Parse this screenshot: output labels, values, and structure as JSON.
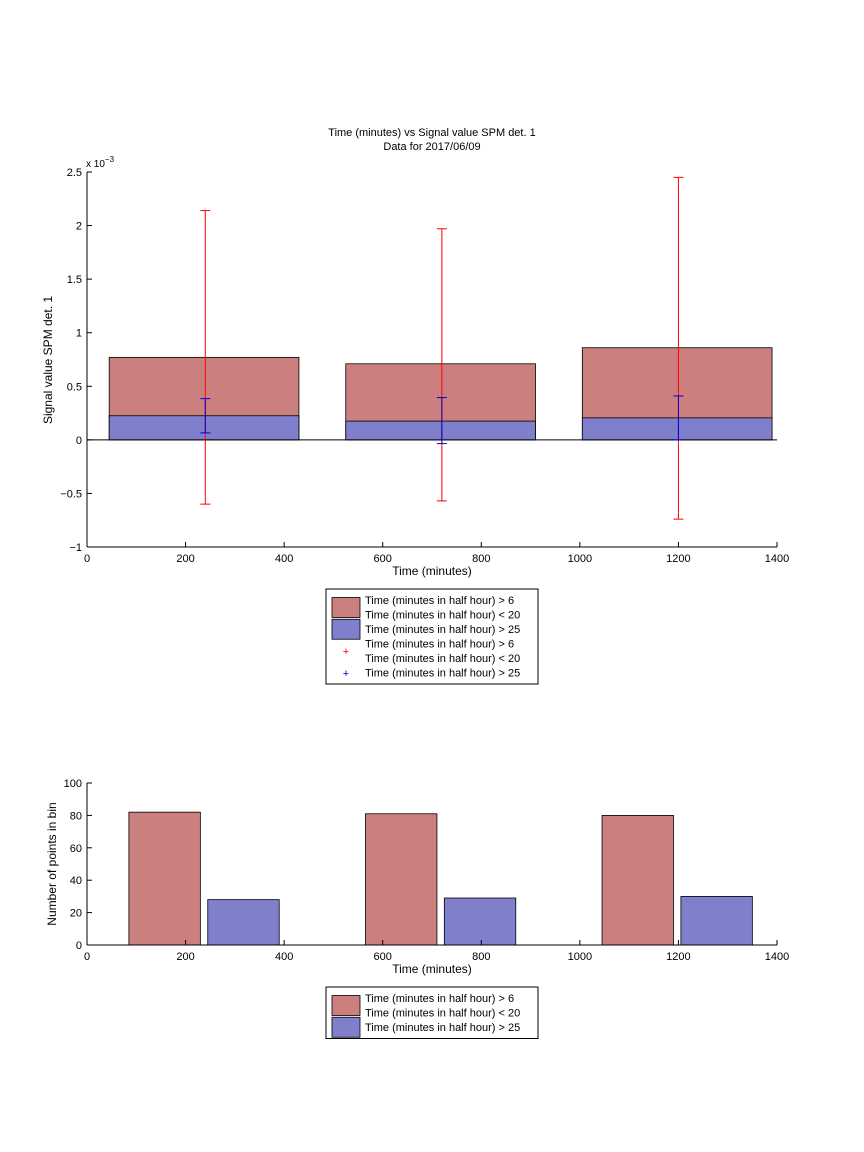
{
  "chart_data": [
    {
      "type": "bar",
      "title": "Time (minutes) vs Signal value SPM det. 1",
      "subtitle": "Data for 2017/06/09",
      "xlabel": "Time (minutes)",
      "ylabel": "Signal value SPM det. 1",
      "xlim": [
        0,
        1400
      ],
      "ylim": [
        -1,
        2.5
      ],
      "exponent_label": "x 10",
      "exponent_power": "−3",
      "xticks": [
        "0",
        "200",
        "400",
        "600",
        "800",
        "1000",
        "1200",
        "1400"
      ],
      "yticks": [
        "−1",
        "−0.5",
        "0",
        "0.5",
        "1",
        "1.5",
        "2",
        "2.5"
      ],
      "bars": [
        {
          "x_start": 45,
          "x_end": 430,
          "series": "Time (minutes in half hour) > 6\nTime (minutes in half hour) < 20",
          "value": 0.77
        },
        {
          "x_start": 525,
          "x_end": 910,
          "series": "Time (minutes in half hour) > 6\nTime (minutes in half hour) < 20",
          "value": 0.71
        },
        {
          "x_start": 1005,
          "x_end": 1390,
          "series": "Time (minutes in half hour) > 6\nTime (minutes in half hour) < 20",
          "value": 0.86
        },
        {
          "x_start": 45,
          "x_end": 430,
          "series": "Time (minutes in half hour) > 25",
          "value": 0.225
        },
        {
          "x_start": 525,
          "x_end": 910,
          "series": "Time (minutes in half hour) > 25",
          "value": 0.175
        },
        {
          "x_start": 1005,
          "x_end": 1390,
          "series": "Time (minutes in half hour) > 25",
          "value": 0.205
        }
      ],
      "errorbars": [
        {
          "x": 240,
          "low": -0.6,
          "high": 2.14,
          "color": "#ff0000"
        },
        {
          "x": 720,
          "low": -0.57,
          "high": 1.97,
          "color": "#ff0000"
        },
        {
          "x": 1200,
          "low": -0.74,
          "high": 2.45,
          "color": "#ff0000"
        },
        {
          "x": 240,
          "low": 0.065,
          "high": 0.385,
          "color": "#0000cc"
        },
        {
          "x": 720,
          "low": -0.035,
          "high": 0.395,
          "color": "#0000cc"
        },
        {
          "x": 1200,
          "low": 0.0,
          "high": 0.41,
          "color": "#0000cc"
        }
      ],
      "legend": {
        "placement": "below",
        "entries": [
          {
            "kind": "patch",
            "color": "#cc7f7f",
            "lines": [
              "Time (minutes in half hour) > 6",
              "Time (minutes in half hour) < 20"
            ]
          },
          {
            "kind": "patch",
            "color": "#7f7fcc",
            "lines": [
              "Time (minutes in half hour) > 25"
            ]
          },
          {
            "kind": "marker",
            "color": "#ff0000",
            "lines": [
              "Time (minutes in half hour) > 6",
              "Time (minutes in half hour) < 20"
            ]
          },
          {
            "kind": "marker",
            "color": "#0000cc",
            "lines": [
              "Time (minutes in half hour) > 25"
            ]
          }
        ]
      }
    },
    {
      "type": "bar",
      "xlabel": "Time (minutes)",
      "ylabel": "Number of points in bin",
      "xlim": [
        0,
        1400
      ],
      "ylim": [
        0,
        100
      ],
      "xticks": [
        "0",
        "200",
        "400",
        "600",
        "800",
        "1000",
        "1200",
        "1400"
      ],
      "yticks": [
        "0",
        "20",
        "40",
        "60",
        "80",
        "100"
      ],
      "bars": [
        {
          "x_start": 85,
          "x_end": 230,
          "series": "Time (minutes in half hour) > 6\nTime (minutes in half hour) < 20",
          "value": 82
        },
        {
          "x_start": 245,
          "x_end": 390,
          "series": "Time (minutes in half hour) > 25",
          "value": 28
        },
        {
          "x_start": 565,
          "x_end": 710,
          "series": "Time (minutes in half hour) > 6\nTime (minutes in half hour) < 20",
          "value": 81
        },
        {
          "x_start": 725,
          "x_end": 870,
          "series": "Time (minutes in half hour) > 25",
          "value": 29
        },
        {
          "x_start": 1045,
          "x_end": 1190,
          "series": "Time (minutes in half hour) > 6\nTime (minutes in half hour) < 20",
          "value": 80
        },
        {
          "x_start": 1205,
          "x_end": 1350,
          "series": "Time (minutes in half hour) > 25",
          "value": 30
        }
      ],
      "legend": {
        "placement": "below",
        "entries": [
          {
            "kind": "patch",
            "color": "#cc7f7f",
            "lines": [
              "Time (minutes in half hour) > 6",
              "Time (minutes in half hour) < 20"
            ]
          },
          {
            "kind": "patch",
            "color": "#7f7fcc",
            "lines": [
              "Time (minutes in half hour) > 25"
            ]
          }
        ]
      }
    }
  ]
}
